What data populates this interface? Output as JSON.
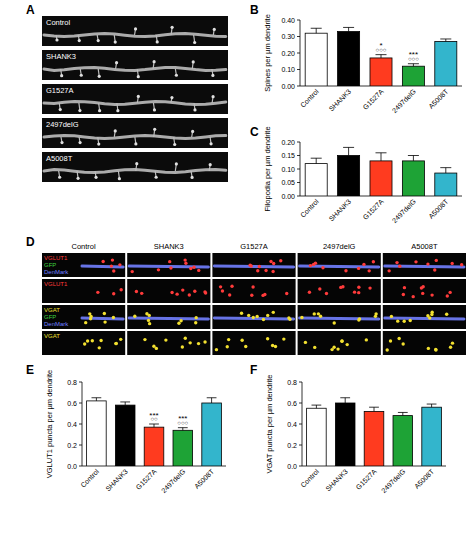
{
  "chart_data": [
    {
      "panel": "B",
      "type": "bar",
      "y_label": "Spines per µm dendrite",
      "categories": [
        "Control",
        "SHANK3",
        "G1527A",
        "2497delG",
        "A5008T"
      ],
      "values": [
        0.32,
        0.33,
        0.17,
        0.12,
        0.27
      ],
      "errors": [
        0.03,
        0.025,
        0.02,
        0.015,
        0.015
      ],
      "colors": [
        "#ffffff",
        "#000000",
        "#ff3b1f",
        "#1ea336",
        "#33b5cc"
      ],
      "ylim": [
        0,
        0.4
      ],
      "yticks": [
        {
          "value": 0,
          "label": "0.00"
        },
        {
          "value": 0.1,
          "label": "0.10"
        },
        {
          "value": 0.2,
          "label": "0.20"
        },
        {
          "value": 0.3,
          "label": "0.30"
        },
        {
          "value": 0.4,
          "label": "0.40"
        }
      ],
      "grid": false,
      "annotations": [
        {
          "category": "G1527A",
          "text": "*"
        },
        {
          "category": "G1527A",
          "text": "○○○"
        },
        {
          "category": "2497delG",
          "text": "***"
        },
        {
          "category": "2497delG",
          "text": "○○○"
        }
      ]
    },
    {
      "panel": "C",
      "type": "bar",
      "y_label": "Filopodia per µm dendrite",
      "categories": [
        "Control",
        "SHANK3",
        "G1527A",
        "2497delG",
        "A5008T"
      ],
      "values": [
        0.12,
        0.15,
        0.13,
        0.13,
        0.085
      ],
      "errors": [
        0.02,
        0.03,
        0.03,
        0.02,
        0.02
      ],
      "colors": [
        "#ffffff",
        "#000000",
        "#ff3b1f",
        "#1ea336",
        "#33b5cc"
      ],
      "ylim": [
        0,
        0.2
      ],
      "yticks": [
        {
          "value": 0,
          "label": "0.00"
        },
        {
          "value": 0.05,
          "label": "0.05"
        },
        {
          "value": 0.1,
          "label": "0.10"
        },
        {
          "value": 0.15,
          "label": "0.15"
        },
        {
          "value": 0.2,
          "label": "0.20"
        }
      ],
      "grid": false
    },
    {
      "panel": "E",
      "type": "bar",
      "y_label": "VGLUT1 puncta per µm dendrite",
      "categories": [
        "Control",
        "SHANK3",
        "G1527A",
        "2497delG",
        "A5008T"
      ],
      "values": [
        0.62,
        0.58,
        0.37,
        0.34,
        0.6
      ],
      "errors": [
        0.03,
        0.03,
        0.03,
        0.025,
        0.05
      ],
      "colors": [
        "#ffffff",
        "#000000",
        "#ff3b1f",
        "#1ea336",
        "#33b5cc"
      ],
      "ylim": [
        0,
        0.8
      ],
      "yticks": [
        {
          "value": 0,
          "label": "0.0"
        },
        {
          "value": 0.2,
          "label": "0.2"
        },
        {
          "value": 0.4,
          "label": "0.4"
        },
        {
          "value": 0.6,
          "label": "0.6"
        },
        {
          "value": 0.8,
          "label": "0.8"
        }
      ],
      "grid": false,
      "annotations": [
        {
          "category": "G1527A",
          "text": "***"
        },
        {
          "category": "G1527A",
          "text": "○○"
        },
        {
          "category": "2497delG",
          "text": "***"
        },
        {
          "category": "2497delG",
          "text": "○○○"
        }
      ]
    },
    {
      "panel": "F",
      "type": "bar",
      "y_label": "VGAT puncta per µm dendrite",
      "categories": [
        "Control",
        "SHANK3",
        "G1527A",
        "2497delG",
        "A5008T"
      ],
      "values": [
        0.55,
        0.6,
        0.52,
        0.48,
        0.56
      ],
      "errors": [
        0.03,
        0.05,
        0.04,
        0.03,
        0.03
      ],
      "colors": [
        "#ffffff",
        "#000000",
        "#ff3b1f",
        "#1ea336",
        "#33b5cc"
      ],
      "ylim": [
        0,
        0.8
      ],
      "yticks": [
        {
          "value": 0,
          "label": "0.0"
        },
        {
          "value": 0.2,
          "label": "0.2"
        },
        {
          "value": 0.4,
          "label": "0.4"
        },
        {
          "value": 0.6,
          "label": "0.6"
        },
        {
          "value": 0.8,
          "label": "0.8"
        }
      ],
      "grid": false
    }
  ],
  "images": {
    "A": {
      "panel": "A",
      "labels": [
        "Control",
        "SHANK3",
        "G1527A",
        "2497delG",
        "A5008T"
      ]
    },
    "D": {
      "panel": "D",
      "columns": [
        "Control",
        "SHANK3",
        "G1527A",
        "2497delG",
        "A5008T"
      ],
      "rows": [
        {
          "channels": [
            {
              "text": "VGLUT1",
              "color": "#ff3b3b"
            },
            {
              "text": "GFP",
              "color": "#3fcf3f"
            },
            {
              "text": "DenMark",
              "color": "#7280ff"
            }
          ]
        },
        {
          "channels": [
            {
              "text": "VGLUT1",
              "color": "#ff3b3b"
            }
          ]
        },
        {
          "channels": [
            {
              "text": "VGAT",
              "color": "#f2e030"
            },
            {
              "text": "GFP",
              "color": "#3fcf3f"
            },
            {
              "text": "DenMark",
              "color": "#7280ff"
            }
          ]
        },
        {
          "channels": [
            {
              "text": "VGAT",
              "color": "#f2e030"
            }
          ]
        }
      ]
    }
  }
}
